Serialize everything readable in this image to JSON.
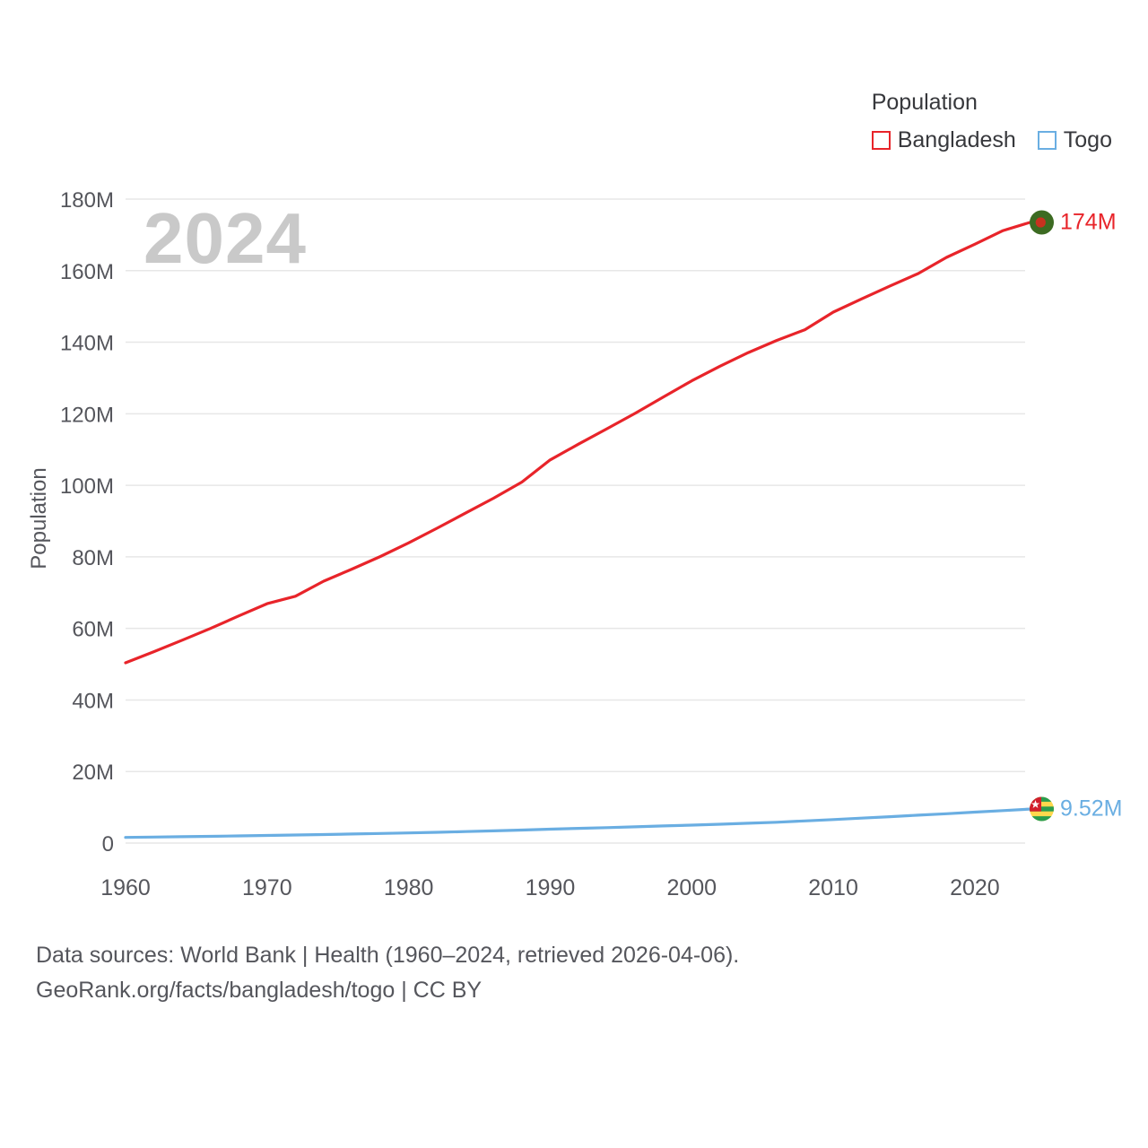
{
  "watermark": "2024",
  "legend": {
    "title": "Population",
    "items": [
      {
        "label": "Bangladesh",
        "color": "#e8242a"
      },
      {
        "label": "Togo",
        "color": "#6aaee2"
      }
    ]
  },
  "chart_data": {
    "type": "line",
    "title": "Population",
    "xlabel": "",
    "ylabel": "Population",
    "y_unit": "millions",
    "xlim": [
      1960,
      2024
    ],
    "ylim": [
      0,
      180
    ],
    "grid": true,
    "legend_position": "top-right",
    "x_ticks": [
      1960,
      1970,
      1980,
      1990,
      2000,
      2010,
      2020
    ],
    "y_ticks": [
      0,
      20,
      40,
      60,
      80,
      100,
      120,
      140,
      160,
      180
    ],
    "y_tick_labels": [
      "0",
      "20M",
      "40M",
      "60M",
      "80M",
      "100M",
      "120M",
      "140M",
      "160M",
      "180M"
    ],
    "x": [
      1960,
      1962,
      1964,
      1966,
      1968,
      1970,
      1972,
      1974,
      1976,
      1978,
      1980,
      1982,
      1984,
      1986,
      1988,
      1990,
      1992,
      1994,
      1996,
      1998,
      2000,
      2002,
      2004,
      2006,
      2008,
      2010,
      2012,
      2014,
      2016,
      2018,
      2020,
      2022,
      2024
    ],
    "series": [
      {
        "name": "Bangladesh",
        "color": "#e8242a",
        "end_label": "174M",
        "flag_icon": "bangladesh-flag-icon",
        "values": [
          50.4,
          53.5,
          56.7,
          60.0,
          63.5,
          66.9,
          69.0,
          73.2,
          76.6,
          80.1,
          83.9,
          88.0,
          92.2,
          96.4,
          100.9,
          107.1,
          111.5,
          115.8,
          120.1,
          124.7,
          129.2,
          133.3,
          137.1,
          140.5,
          143.5,
          148.4,
          152.1,
          155.7,
          159.2,
          163.7,
          167.4,
          171.2,
          173.6
        ]
      },
      {
        "name": "Togo",
        "color": "#6aaee2",
        "end_label": "9.52M",
        "flag_icon": "togo-flag-icon",
        "values": [
          1.58,
          1.67,
          1.77,
          1.88,
          2.0,
          2.12,
          2.25,
          2.39,
          2.54,
          2.68,
          2.84,
          3.02,
          3.21,
          3.42,
          3.64,
          3.88,
          4.1,
          4.32,
          4.55,
          4.78,
          5.01,
          5.26,
          5.53,
          5.81,
          6.18,
          6.57,
          6.96,
          7.37,
          7.79,
          8.21,
          8.64,
          9.07,
          9.52
        ]
      }
    ]
  },
  "footer": {
    "line1": "Data sources: World Bank | Health (1960–2024, retrieved 2026-04-06).",
    "line2": "GeoRank.org/facts/bangladesh/togo | CC BY"
  }
}
